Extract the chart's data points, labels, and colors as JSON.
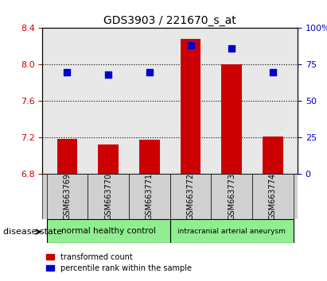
{
  "title": "GDS3903 / 221670_s_at",
  "samples": [
    "GSM663769",
    "GSM663770",
    "GSM663771",
    "GSM663772",
    "GSM663773",
    "GSM663774"
  ],
  "transformed_count": [
    7.19,
    7.13,
    7.18,
    8.28,
    8.0,
    7.21
  ],
  "percentile_rank": [
    70,
    68,
    70,
    88,
    86,
    70
  ],
  "ylim_left": [
    6.8,
    8.4
  ],
  "ylim_right": [
    0,
    100
  ],
  "yticks_left": [
    6.8,
    7.2,
    7.6,
    8.0,
    8.4
  ],
  "yticks_right": [
    0,
    25,
    50,
    75,
    100
  ],
  "bar_color": "#cc0000",
  "dot_color": "#0000cc",
  "bar_bottom": 6.8,
  "groups": [
    {
      "label": "normal healthy control",
      "indices": [
        0,
        1,
        2
      ],
      "color": "#90ee90"
    },
    {
      "label": "intracranial arterial aneurysm",
      "indices": [
        3,
        4,
        5
      ],
      "color": "#90ee90"
    }
  ],
  "disease_state_label": "disease state",
  "legend_bar_label": "transformed count",
  "legend_dot_label": "percentile rank within the sample",
  "grid_color": "#000000",
  "tick_label_color_left": "#cc0000",
  "tick_label_color_right": "#0000cc",
  "background_plot": "#e8e8e8",
  "background_group": "#90ee90"
}
